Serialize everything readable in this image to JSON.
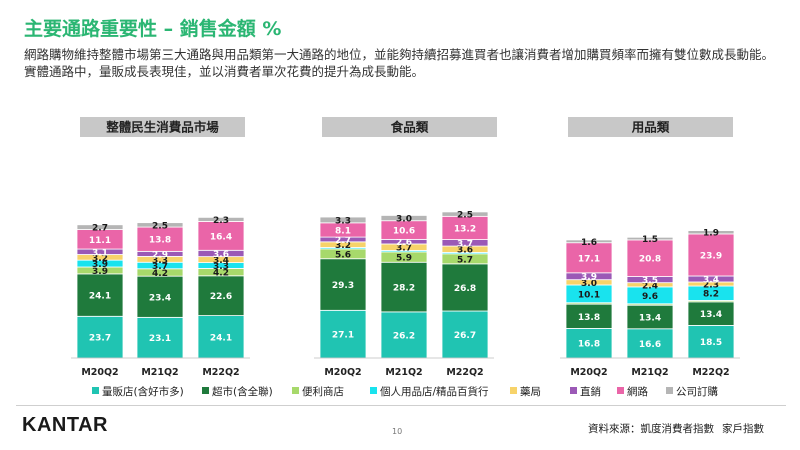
{
  "title": "主要通路重要性 – 銷售金額 %",
  "description": "網路購物維持整體市場第三大通路與用品類第一大通路的地位，並能夠持續招募進買者也讓消費者增加購買頻率而擁有雙位數成長動能。實體通路中，量販成長表現佳，並以消費者單次花費的提升為成長動能。",
  "footer": {
    "brand": "KANTAR",
    "page": "10",
    "source_label": "資料來源：凱度消費者指數",
    "source_extra": "家戶指數"
  },
  "colors": [
    "#20c4b2",
    "#1f7a3c",
    "#a7d96b",
    "#19e3ee",
    "#f7d36a",
    "#9b59b6",
    "#ea65a8",
    "#b5b5b5"
  ],
  "chart_data": {
    "type": "bar",
    "stacked": true,
    "ylim": [
      0,
      100
    ],
    "series_names": [
      "量販店(含好市多)",
      "超市(含全聯)",
      "便利商店",
      "個人用品店/精品百貨行",
      "藥局",
      "直銷",
      "網路",
      "公司訂購"
    ],
    "groups": [
      {
        "label": "整體民生消費品市場",
        "categories": [
          "M20Q2",
          "M21Q2",
          "M22Q2"
        ],
        "stacks": [
          [
            23.7,
            24.1,
            3.9,
            3.9,
            3.2,
            3.1,
            11.1,
            2.7
          ],
          [
            23.1,
            23.4,
            4.2,
            3.7,
            3.3,
            2.9,
            13.8,
            2.5
          ],
          [
            24.1,
            22.6,
            4.2,
            3.3,
            3.4,
            3.6,
            16.4,
            2.3
          ]
        ]
      },
      {
        "label": "食品類",
        "categories": [
          "M20Q2",
          "M21Q2",
          "M22Q2"
        ],
        "stacks": [
          [
            27.1,
            29.3,
            5.6,
            0.8,
            3.2,
            2.7,
            8.1,
            3.3
          ],
          [
            26.2,
            28.2,
            5.9,
            0.8,
            3.7,
            2.6,
            10.6,
            3.0
          ],
          [
            26.7,
            26.8,
            5.7,
            0.8,
            3.6,
            3.7,
            13.2,
            2.5
          ]
        ]
      },
      {
        "label": "用品類",
        "categories": [
          "M20Q2",
          "M21Q2",
          "M22Q2"
        ],
        "stacks": [
          [
            16.8,
            13.8,
            0.8,
            10.1,
            3.0,
            3.9,
            17.1,
            1.6
          ],
          [
            16.6,
            13.4,
            0.8,
            9.6,
            2.4,
            3.5,
            20.8,
            1.5
          ],
          [
            18.5,
            13.4,
            0.8,
            8.2,
            2.3,
            3.4,
            23.9,
            1.9
          ]
        ]
      }
    ],
    "hidden_labels": [
      [
        [],
        [],
        []
      ],
      [
        [
          3
        ],
        [
          3
        ],
        [
          3
        ]
      ],
      [
        [
          2
        ],
        [
          2
        ],
        [
          2
        ]
      ]
    ]
  }
}
